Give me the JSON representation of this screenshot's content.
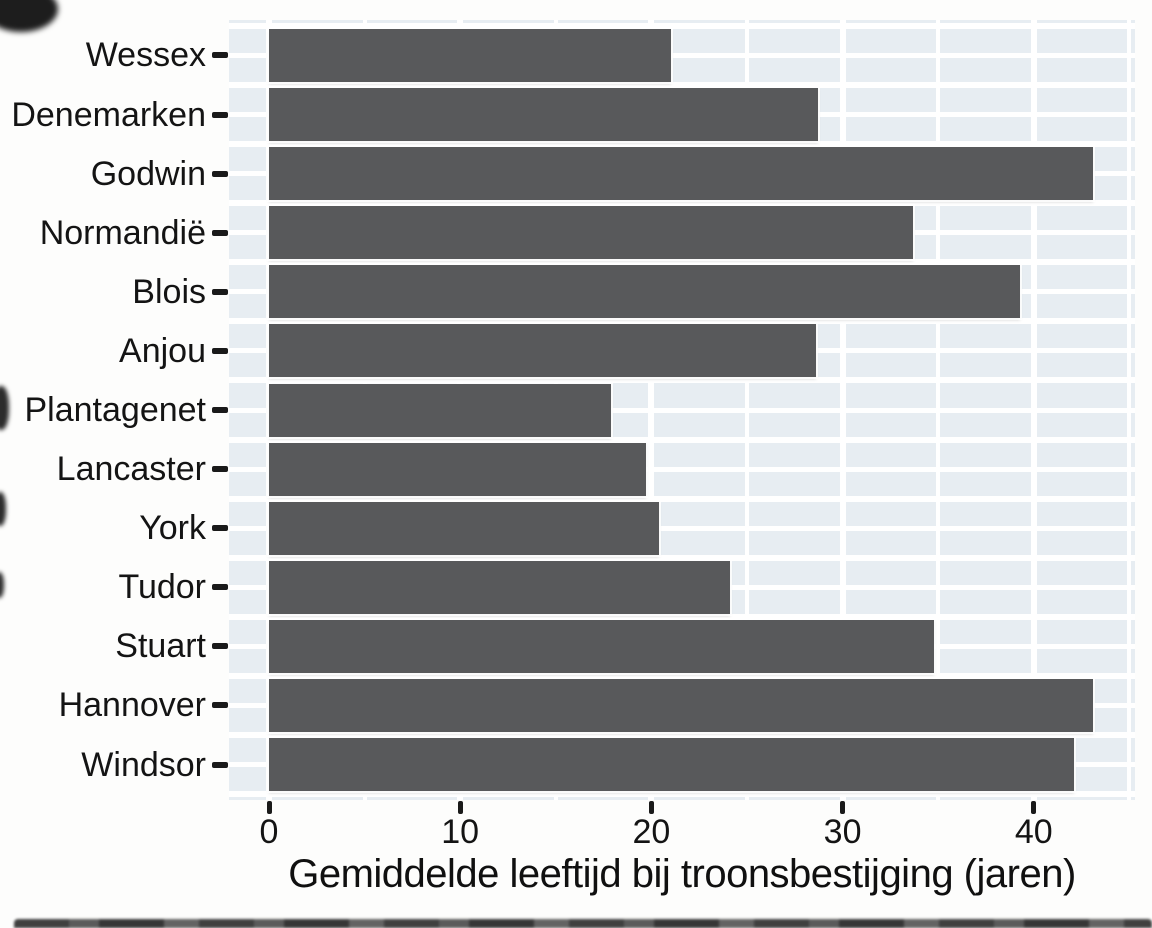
{
  "chart_data": {
    "type": "bar",
    "orientation": "horizontal",
    "title": "",
    "xlabel": "Gemiddelde leeftijd bij troonsbestijging (jaren)",
    "ylabel": "",
    "categories": [
      "Wessex",
      "Denemarken",
      "Godwin",
      "Normandië",
      "Blois",
      "Anjou",
      "Plantagenet",
      "Lancaster",
      "York",
      "Tudor",
      "Stuart",
      "Hannover",
      "Windsor"
    ],
    "values": [
      21.0,
      28.7,
      43.1,
      33.7,
      39.3,
      28.6,
      17.9,
      19.7,
      20.4,
      24.1,
      34.8,
      43.1,
      42.1
    ],
    "x_ticks": [
      0,
      10,
      20,
      30,
      40
    ],
    "x_tick_labels": [
      "0",
      "10",
      "20",
      "30",
      "40"
    ],
    "x_minor_ticks": [
      5,
      15,
      25,
      35,
      45
    ],
    "xlim": [
      -2.1,
      45.3
    ],
    "grid": "white major and minor gridlines on light blue panel",
    "legend": "none",
    "colors": {
      "bar": "#58595b",
      "panel": "#e7edf2",
      "gridline": "#ffffff",
      "text": "#141414",
      "background": "#fdfdfc"
    }
  }
}
